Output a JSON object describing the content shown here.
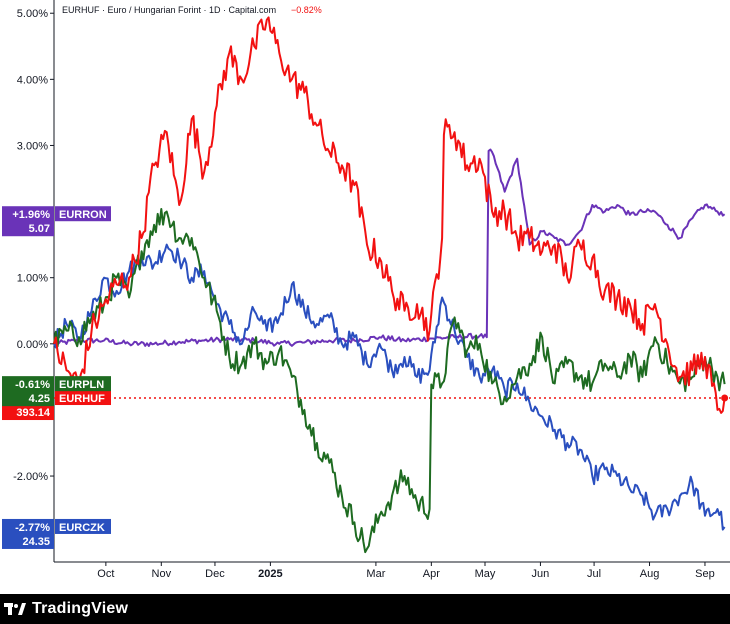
{
  "chart_data": {
    "type": "line",
    "title": "EURHUF · Euro / Hungarian Forint · 1D · Capital.com",
    "title_change": "−0.82%",
    "y_unit": "%",
    "ylim": [
      -3.3,
      5.2
    ],
    "y_ticks": [
      {
        "value": 5,
        "label": "5.00%"
      },
      {
        "value": 4,
        "label": "4.00%"
      },
      {
        "value": 3,
        "label": "3.00%"
      },
      {
        "value": 1,
        "label": "1.00%"
      },
      {
        "value": 0,
        "label": "0.00%"
      },
      {
        "value": -2,
        "label": "-2.00%"
      }
    ],
    "x_ticks": [
      {
        "x": "2024-10-01",
        "label": "Oct",
        "bold": false
      },
      {
        "x": "2024-11-01",
        "label": "Nov",
        "bold": false
      },
      {
        "x": "2024-12-01",
        "label": "Dec",
        "bold": false
      },
      {
        "x": "2025-01-01",
        "label": "2025",
        "bold": true
      },
      {
        "x": "2025-03-01",
        "label": "Mar",
        "bold": false
      },
      {
        "x": "2025-04-01",
        "label": "Apr",
        "bold": false
      },
      {
        "x": "2025-05-01",
        "label": "May",
        "bold": false
      },
      {
        "x": "2025-06-01",
        "label": "Jun",
        "bold": false
      },
      {
        "x": "2025-07-01",
        "label": "Jul",
        "bold": false
      },
      {
        "x": "2025-08-01",
        "label": "Aug",
        "bold": false
      },
      {
        "x": "2025-09-01",
        "label": "Sep",
        "bold": false
      }
    ],
    "xlim": [
      "2024-09-02",
      "2025-09-15"
    ],
    "grid": false,
    "reference_line": {
      "series": "EURHUF",
      "value": -0.82,
      "style": "dotted"
    },
    "series": [
      {
        "name": "EURHUF",
        "color": "#f21111",
        "badge_pct": "-0.82%",
        "badge_price": "393.14",
        "last": -0.82,
        "points": [
          [
            "2024-09-02",
            0.0
          ],
          [
            "2024-09-09",
            -0.4
          ],
          [
            "2024-09-16",
            -0.6
          ],
          [
            "2024-09-23",
            0.2
          ],
          [
            "2024-09-30",
            0.6
          ],
          [
            "2024-10-07",
            0.9
          ],
          [
            "2024-10-14",
            1.0
          ],
          [
            "2024-10-21",
            1.6
          ],
          [
            "2024-10-28",
            2.7
          ],
          [
            "2024-11-04",
            3.2
          ],
          [
            "2024-11-11",
            2.1
          ],
          [
            "2024-11-18",
            3.4
          ],
          [
            "2024-11-25",
            2.6
          ],
          [
            "2024-12-02",
            3.6
          ],
          [
            "2024-12-09",
            4.4
          ],
          [
            "2024-12-16",
            4.0
          ],
          [
            "2024-12-23",
            4.5
          ],
          [
            "2024-12-30",
            4.9
          ],
          [
            "2025-01-06",
            4.4
          ],
          [
            "2025-01-13",
            4.0
          ],
          [
            "2025-01-20",
            3.8
          ],
          [
            "2025-01-27",
            3.3
          ],
          [
            "2025-02-03",
            2.9
          ],
          [
            "2025-02-10",
            2.7
          ],
          [
            "2025-02-17",
            2.4
          ],
          [
            "2025-02-24",
            1.5
          ],
          [
            "2025-03-03",
            1.3
          ],
          [
            "2025-03-10",
            0.8
          ],
          [
            "2025-03-17",
            0.5
          ],
          [
            "2025-03-24",
            0.6
          ],
          [
            "2025-03-31",
            0.2
          ],
          [
            "2025-04-07",
            1.6
          ],
          [
            "2025-04-14",
            3.2
          ],
          [
            "2025-04-21",
            2.7
          ],
          [
            "2025-04-28",
            2.8
          ],
          [
            "2025-05-05",
            2.0
          ],
          [
            "2025-05-12",
            2.0
          ],
          [
            "2025-05-19",
            1.6
          ],
          [
            "2025-05-26",
            1.6
          ],
          [
            "2025-06-02",
            1.4
          ],
          [
            "2025-06-09",
            1.5
          ],
          [
            "2025-06-16",
            1.0
          ],
          [
            "2025-06-23",
            1.5
          ],
          [
            "2025-06-30",
            1.3
          ],
          [
            "2025-07-07",
            0.8
          ],
          [
            "2025-07-14",
            0.7
          ],
          [
            "2025-07-21",
            0.6
          ],
          [
            "2025-07-28",
            0.3
          ],
          [
            "2025-08-04",
            0.6
          ],
          [
            "2025-08-11",
            0.0
          ],
          [
            "2025-08-18",
            -0.5
          ],
          [
            "2025-08-25",
            -0.4
          ],
          [
            "2025-09-01",
            -0.2
          ],
          [
            "2025-09-08",
            -1.0
          ],
          [
            "2025-09-12",
            -0.82
          ]
        ]
      },
      {
        "name": "EURRON",
        "color": "#6a33b8",
        "badge_pct": "+1.96%",
        "badge_price": "5.07",
        "last": 1.96,
        "points": [
          [
            "2024-09-02",
            0.0
          ],
          [
            "2024-09-16",
            0.05
          ],
          [
            "2024-09-30",
            0.05
          ],
          [
            "2024-10-14",
            0.0
          ],
          [
            "2024-10-28",
            0.0
          ],
          [
            "2024-11-11",
            0.03
          ],
          [
            "2024-11-25",
            0.05
          ],
          [
            "2024-12-09",
            0.07
          ],
          [
            "2024-12-23",
            0.05
          ],
          [
            "2025-01-06",
            0.0
          ],
          [
            "2025-01-20",
            0.02
          ],
          [
            "2025-02-03",
            0.05
          ],
          [
            "2025-02-17",
            0.05
          ],
          [
            "2025-03-03",
            0.1
          ],
          [
            "2025-03-17",
            0.05
          ],
          [
            "2025-03-31",
            0.08
          ],
          [
            "2025-04-14",
            0.1
          ],
          [
            "2025-04-28",
            0.12
          ],
          [
            "2025-05-02",
            0.1
          ],
          [
            "2025-05-05",
            2.9
          ],
          [
            "2025-05-12",
            2.3
          ],
          [
            "2025-05-19",
            2.8
          ],
          [
            "2025-05-26",
            1.5
          ],
          [
            "2025-06-02",
            1.7
          ],
          [
            "2025-06-09",
            1.6
          ],
          [
            "2025-06-16",
            1.5
          ],
          [
            "2025-06-23",
            1.7
          ],
          [
            "2025-06-30",
            2.1
          ],
          [
            "2025-07-07",
            2.0
          ],
          [
            "2025-07-14",
            2.1
          ],
          [
            "2025-07-21",
            1.95
          ],
          [
            "2025-07-28",
            2.0
          ],
          [
            "2025-08-04",
            2.0
          ],
          [
            "2025-08-11",
            1.8
          ],
          [
            "2025-08-18",
            1.6
          ],
          [
            "2025-08-25",
            1.9
          ],
          [
            "2025-09-01",
            2.1
          ],
          [
            "2025-09-08",
            2.0
          ],
          [
            "2025-09-12",
            1.96
          ]
        ]
      },
      {
        "name": "EURPLN",
        "color": "#1e6b21",
        "badge_pct": "-0.61%",
        "badge_price": "4.25",
        "last": -0.61,
        "points": [
          [
            "2024-09-02",
            0.0
          ],
          [
            "2024-09-09",
            0.2
          ],
          [
            "2024-09-16",
            0.1
          ],
          [
            "2024-09-23",
            0.4
          ],
          [
            "2024-09-30",
            0.6
          ],
          [
            "2024-10-07",
            1.0
          ],
          [
            "2024-10-14",
            0.7
          ],
          [
            "2024-10-21",
            1.4
          ],
          [
            "2024-10-28",
            1.8
          ],
          [
            "2024-11-04",
            2.0
          ],
          [
            "2024-11-11",
            1.6
          ],
          [
            "2024-11-18",
            1.6
          ],
          [
            "2024-11-25",
            1.0
          ],
          [
            "2024-12-02",
            0.5
          ],
          [
            "2024-12-09",
            -0.2
          ],
          [
            "2024-12-16",
            -0.3
          ],
          [
            "2024-12-23",
            0.0
          ],
          [
            "2024-12-30",
            -0.3
          ],
          [
            "2025-01-06",
            -0.1
          ],
          [
            "2025-01-13",
            -0.5
          ],
          [
            "2025-01-20",
            -1.0
          ],
          [
            "2025-01-27",
            -1.5
          ],
          [
            "2025-02-03",
            -1.8
          ],
          [
            "2025-02-10",
            -2.3
          ],
          [
            "2025-02-17",
            -2.7
          ],
          [
            "2025-02-24",
            -3.1
          ],
          [
            "2025-03-03",
            -2.6
          ],
          [
            "2025-03-10",
            -2.3
          ],
          [
            "2025-03-17",
            -2.0
          ],
          [
            "2025-03-24",
            -2.4
          ],
          [
            "2025-03-31",
            -2.5
          ],
          [
            "2025-04-07",
            -0.6
          ],
          [
            "2025-04-14",
            0.4
          ],
          [
            "2025-04-21",
            -0.1
          ],
          [
            "2025-04-28",
            0.0
          ],
          [
            "2025-05-05",
            -0.6
          ],
          [
            "2025-05-12",
            -0.8
          ],
          [
            "2025-05-19",
            -0.5
          ],
          [
            "2025-05-26",
            -0.3
          ],
          [
            "2025-06-02",
            0.1
          ],
          [
            "2025-06-09",
            -0.6
          ],
          [
            "2025-06-16",
            -0.3
          ],
          [
            "2025-06-23",
            -0.5
          ],
          [
            "2025-06-30",
            -0.6
          ],
          [
            "2025-07-07",
            -0.3
          ],
          [
            "2025-07-14",
            -0.5
          ],
          [
            "2025-07-21",
            -0.2
          ],
          [
            "2025-07-28",
            -0.5
          ],
          [
            "2025-08-04",
            0.1
          ],
          [
            "2025-08-11",
            -0.3
          ],
          [
            "2025-08-18",
            -0.6
          ],
          [
            "2025-08-25",
            -0.5
          ],
          [
            "2025-09-01",
            -0.2
          ],
          [
            "2025-09-08",
            -0.5
          ],
          [
            "2025-09-12",
            -0.61
          ]
        ]
      },
      {
        "name": "EURCZK",
        "color": "#2a4fbf",
        "badge_pct": "-2.77%",
        "badge_price": "24.35",
        "last": -2.77,
        "points": [
          [
            "2024-09-02",
            0.0
          ],
          [
            "2024-09-09",
            0.3
          ],
          [
            "2024-09-16",
            0.1
          ],
          [
            "2024-09-23",
            0.5
          ],
          [
            "2024-09-30",
            1.0
          ],
          [
            "2024-10-07",
            0.8
          ],
          [
            "2024-10-14",
            1.1
          ],
          [
            "2024-10-21",
            1.3
          ],
          [
            "2024-10-28",
            1.2
          ],
          [
            "2024-11-04",
            1.5
          ],
          [
            "2024-11-11",
            1.3
          ],
          [
            "2024-11-18",
            1.0
          ],
          [
            "2024-11-25",
            1.1
          ],
          [
            "2024-12-02",
            0.6
          ],
          [
            "2024-12-09",
            0.3
          ],
          [
            "2024-12-16",
            0.0
          ],
          [
            "2024-12-23",
            0.5
          ],
          [
            "2024-12-30",
            0.2
          ],
          [
            "2025-01-06",
            0.4
          ],
          [
            "2025-01-13",
            0.9
          ],
          [
            "2025-01-20",
            0.5
          ],
          [
            "2025-01-27",
            0.3
          ],
          [
            "2025-02-03",
            0.4
          ],
          [
            "2025-02-10",
            0.0
          ],
          [
            "2025-02-17",
            0.1
          ],
          [
            "2025-02-24",
            -0.3
          ],
          [
            "2025-03-03",
            0.0
          ],
          [
            "2025-03-10",
            -0.4
          ],
          [
            "2025-03-17",
            -0.2
          ],
          [
            "2025-03-24",
            -0.5
          ],
          [
            "2025-03-31",
            -0.4
          ],
          [
            "2025-04-07",
            0.7
          ],
          [
            "2025-04-14",
            0.2
          ],
          [
            "2025-04-21",
            -0.2
          ],
          [
            "2025-04-28",
            -0.5
          ],
          [
            "2025-05-05",
            -0.4
          ],
          [
            "2025-05-12",
            -0.7
          ],
          [
            "2025-05-19",
            -0.6
          ],
          [
            "2025-05-26",
            -0.9
          ],
          [
            "2025-06-02",
            -1.1
          ],
          [
            "2025-06-09",
            -1.3
          ],
          [
            "2025-06-16",
            -1.5
          ],
          [
            "2025-06-23",
            -1.6
          ],
          [
            "2025-06-30",
            -2.0
          ],
          [
            "2025-07-07",
            -1.9
          ],
          [
            "2025-07-14",
            -2.0
          ],
          [
            "2025-07-21",
            -2.2
          ],
          [
            "2025-07-28",
            -2.3
          ],
          [
            "2025-08-04",
            -2.6
          ],
          [
            "2025-08-11",
            -2.5
          ],
          [
            "2025-08-18",
            -2.3
          ],
          [
            "2025-08-25",
            -2.1
          ],
          [
            "2025-09-01",
            -2.6
          ],
          [
            "2025-09-08",
            -2.5
          ],
          [
            "2025-09-12",
            -2.77
          ]
        ]
      }
    ]
  },
  "footer": {
    "brand": "TradingView",
    "logo_icon": "tradingview-logo-icon"
  }
}
